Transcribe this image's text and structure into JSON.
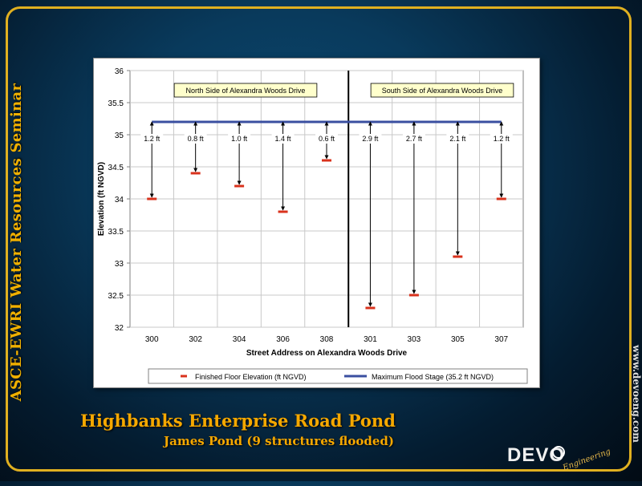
{
  "sidebar_title": "ASCE-EWRI Water Resources Seminar",
  "website": "www.devoeng.com",
  "main_title": "Highbanks Enterprise Road Pond",
  "sub_title": "James Pond (9 structures flooded)",
  "logo": {
    "text": "DEVO",
    "script": "Engineering"
  },
  "colors": {
    "frame": "#e0b020",
    "title": "#f5a800",
    "floor_marker": "#d9321c",
    "flood_line": "#3a4fa0"
  },
  "chart_data": {
    "type": "scatter",
    "xlabel": "Street Address on Alexandra Woods Drive",
    "ylabel": "Elevation (ft NGVD)",
    "ylim": [
      32,
      36
    ],
    "yticks": [
      "32",
      "32.5",
      "33",
      "33.5",
      "34",
      "34.5",
      "35",
      "35.5",
      "36"
    ],
    "categories": [
      "300",
      "302",
      "304",
      "306",
      "308",
      "301",
      "303",
      "305",
      "307"
    ],
    "series": [
      {
        "name": "Finished Floor Elevation (ft NGVD)",
        "values": [
          34.0,
          34.4,
          34.2,
          33.8,
          34.6,
          32.3,
          32.5,
          33.1,
          34.0
        ]
      },
      {
        "name": "Maximum Flood Stage (35.2 ft NGVD)",
        "values": [
          35.2,
          35.2,
          35.2,
          35.2,
          35.2,
          35.2,
          35.2,
          35.2,
          35.2
        ]
      }
    ],
    "depth_labels": [
      "1.2 ft",
      "0.8 ft",
      "1.0 ft",
      "1.4 ft",
      "0.6 ft",
      "2.9 ft",
      "2.7 ft",
      "2.1 ft",
      "1.2 ft"
    ],
    "annotations": [
      "North Side of Alexandra Woods Drive",
      "South Side of Alexandra Woods Drive"
    ],
    "divider_after_category": "308",
    "grid": "horizontal and vertical",
    "legend": "bottom"
  }
}
